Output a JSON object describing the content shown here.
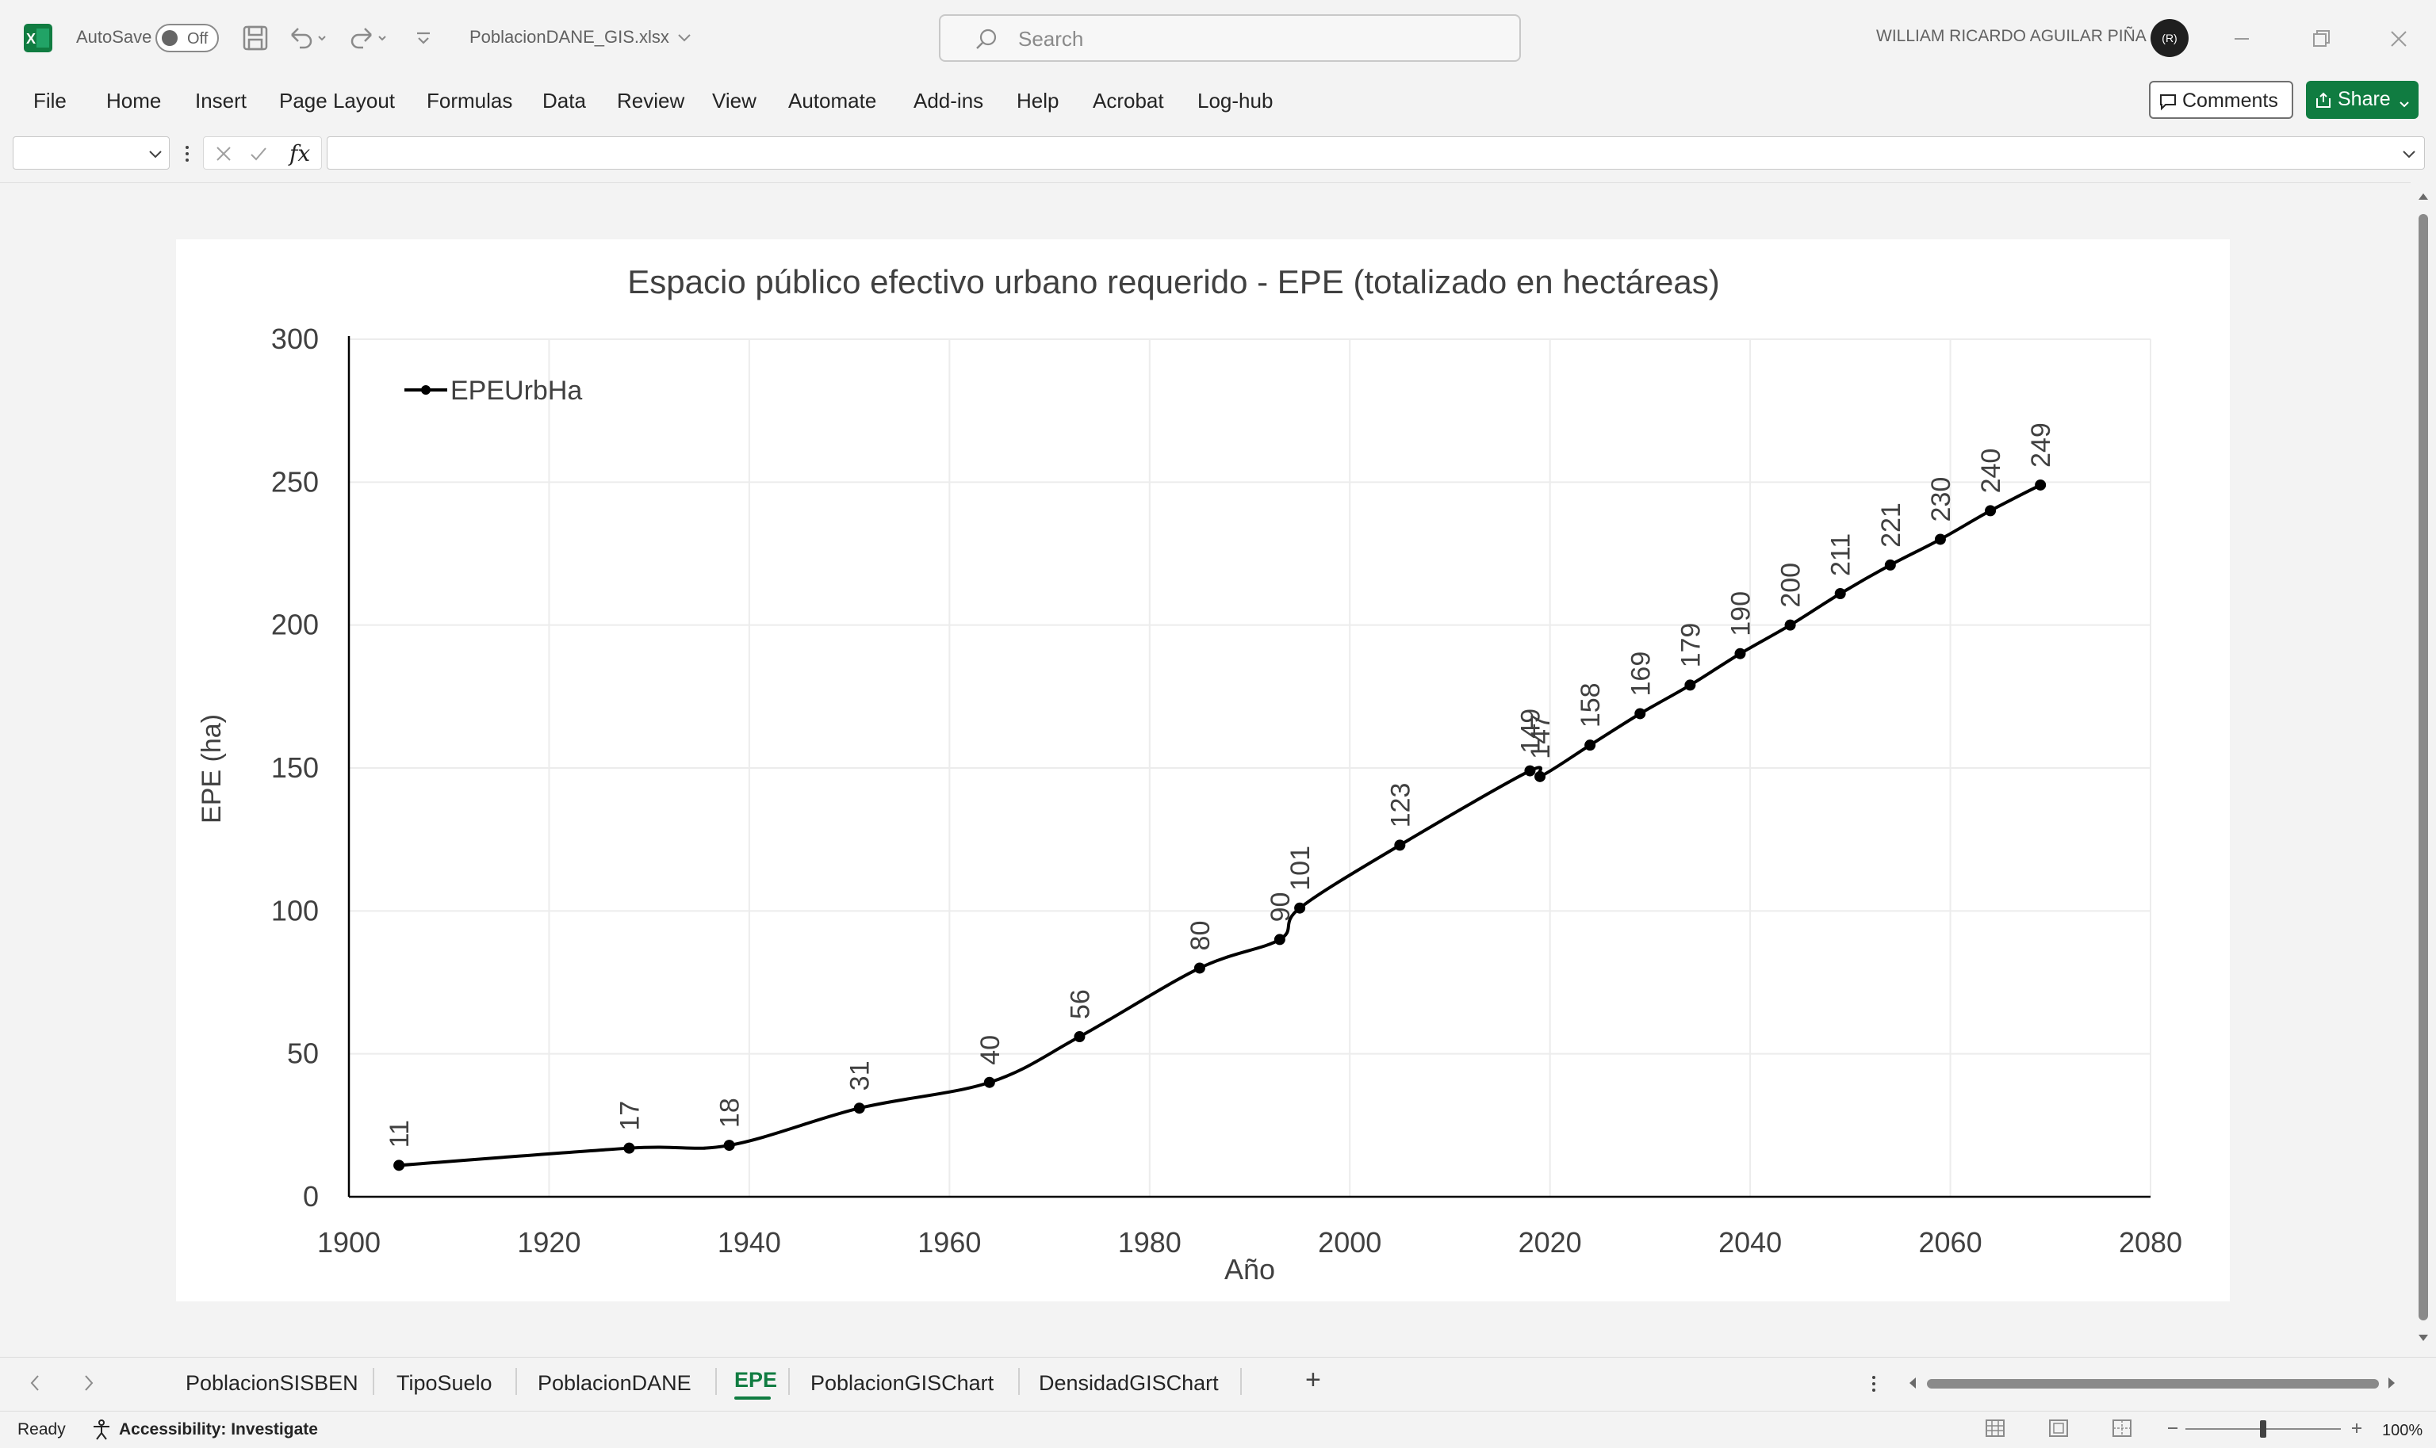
{
  "titlebar": {
    "autosave_label": "AutoSave",
    "autosave_state": "Off",
    "filename": "PoblacionDANE_GIS.xlsx",
    "search_placeholder": "Search",
    "user_name": "WILLIAM RICARDO AGUILAR PIÑA",
    "avatar_initials": "(R)"
  },
  "ribbon": {
    "tabs": [
      "File",
      "Home",
      "Insert",
      "Page Layout",
      "Formulas",
      "Data",
      "Review",
      "View",
      "Automate",
      "Add-ins",
      "Help",
      "Acrobat",
      "Log-hub"
    ],
    "comments_label": "Comments",
    "share_label": "Share"
  },
  "formula_bar": {
    "name_box_value": "",
    "fx_label": "fx",
    "formula_value": ""
  },
  "chart_data": {
    "type": "line",
    "title": "Espacio público efectivo urbano requerido - EPE (totalizado en hectáreas)",
    "xlabel": "Año",
    "ylabel": "EPE (ha)",
    "xlim": [
      1900,
      2080
    ],
    "ylim": [
      0,
      300
    ],
    "x_ticks": [
      1900,
      1920,
      1940,
      1960,
      1980,
      2000,
      2020,
      2040,
      2060,
      2080
    ],
    "y_ticks": [
      0,
      50,
      100,
      150,
      200,
      250,
      300
    ],
    "grid": true,
    "smooth": true,
    "legend": "top-left",
    "series": [
      {
        "name": "EPEUrbHa",
        "color": "#000000",
        "x": [
          1905,
          1928,
          1938,
          1951,
          1964,
          1973,
          1985,
          1993,
          1995,
          2005,
          2018,
          2019,
          2024,
          2029,
          2034,
          2039,
          2044,
          2049,
          2054,
          2059,
          2064,
          2069
        ],
        "values": [
          11,
          17,
          18,
          31,
          40,
          56,
          80,
          90,
          101,
          123,
          149,
          147,
          158,
          169,
          179,
          190,
          200,
          211,
          221,
          230,
          240,
          249
        ],
        "labels": [
          "11",
          "17",
          "18",
          "31",
          "40",
          "56",
          "80",
          "90",
          "101",
          "123",
          "149",
          "147",
          "158",
          "169",
          "179",
          "190",
          "200",
          "211",
          "221",
          "230",
          "240",
          "249"
        ]
      }
    ]
  },
  "sheet_tabs": {
    "tabs": [
      "PoblacionSISBEN",
      "TipoSuelo",
      "PoblacionDANE",
      "EPE",
      "PoblacionGISChart",
      "DensidadGISChart"
    ],
    "active": "EPE",
    "add_label": "+"
  },
  "statusbar": {
    "ready": "Ready",
    "accessibility": "Accessibility: Investigate",
    "zoom": "100%"
  }
}
